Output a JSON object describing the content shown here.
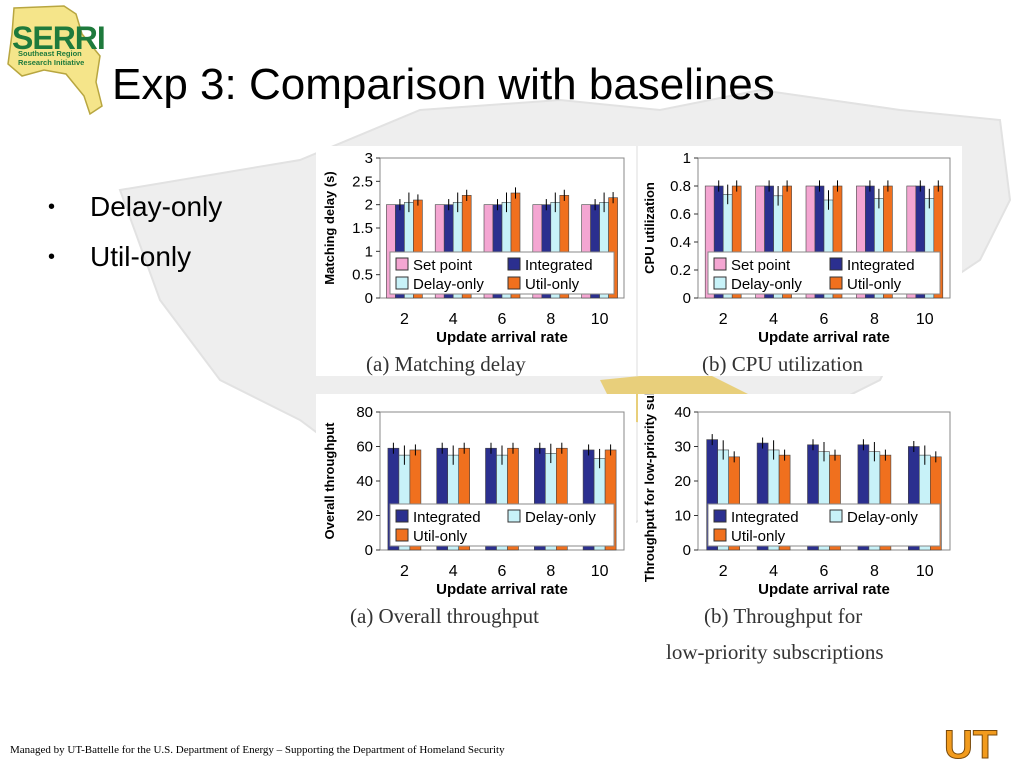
{
  "slide": {
    "title": "Exp 3: Comparison with baselines",
    "bullets": [
      "Delay-only",
      "Util-only"
    ],
    "footer": "Managed by UT-Battelle for the U.S. Department of Energy – Supporting the Department of Homeland Security",
    "logo_text": "SERRI",
    "logo_subtitle": "Southeast Region Research Initiative",
    "ut_logo_text": "UT",
    "captions": {
      "top_left": "(a) Matching delay",
      "top_right": "(b) CPU utilization",
      "bottom_left": "(a) Overall throughput",
      "bottom_right_1": "(b) Throughput for",
      "bottom_right_2": "low-priority subscriptions"
    }
  },
  "colors": {
    "set_point": "#f4a6d2",
    "integrated": "#2b2f8f",
    "delay_only": "#c8f2f8",
    "util_only": "#f0701e"
  },
  "chart_data": [
    {
      "type": "bar",
      "ylabel": "Matching delay (s)",
      "xlabel": "Update arrival rate",
      "categories": [
        "2",
        "4",
        "6",
        "8",
        "10"
      ],
      "ylim": [
        0,
        3
      ],
      "yticks": [
        "0",
        "0.5",
        "1",
        "1.5",
        "2",
        "2.5",
        "3"
      ],
      "legend": "bottom",
      "grid": false,
      "series": [
        {
          "name": "Set point",
          "color": "#f4a6d2",
          "values": [
            2.0,
            2.0,
            2.0,
            2.0,
            2.0
          ]
        },
        {
          "name": "Integrated",
          "color": "#2b2f8f",
          "values": [
            2.0,
            2.0,
            2.0,
            2.0,
            2.0
          ]
        },
        {
          "name": "Delay-only",
          "color": "#c8f2f8",
          "values": [
            2.05,
            2.05,
            2.05,
            2.05,
            2.05
          ]
        },
        {
          "name": "Util-only",
          "color": "#f0701e",
          "values": [
            2.1,
            2.2,
            2.25,
            2.2,
            2.15
          ]
        }
      ]
    },
    {
      "type": "bar",
      "ylabel": "CPU utilization",
      "xlabel": "Update arrival rate",
      "categories": [
        "2",
        "4",
        "6",
        "8",
        "10"
      ],
      "ylim": [
        0,
        1
      ],
      "yticks": [
        "0",
        "0.2",
        "0.4",
        "0.6",
        "0.8",
        "1"
      ],
      "legend": "bottom",
      "grid": false,
      "series": [
        {
          "name": "Set point",
          "color": "#f4a6d2",
          "values": [
            0.8,
            0.8,
            0.8,
            0.8,
            0.8
          ]
        },
        {
          "name": "Integrated",
          "color": "#2b2f8f",
          "values": [
            0.8,
            0.8,
            0.8,
            0.8,
            0.8
          ]
        },
        {
          "name": "Delay-only",
          "color": "#c8f2f8",
          "values": [
            0.74,
            0.73,
            0.7,
            0.71,
            0.71
          ]
        },
        {
          "name": "Util-only",
          "color": "#f0701e",
          "values": [
            0.8,
            0.8,
            0.8,
            0.8,
            0.8
          ]
        }
      ]
    },
    {
      "type": "bar",
      "ylabel": "Overall throughput",
      "xlabel": "Update arrival rate",
      "categories": [
        "2",
        "4",
        "6",
        "8",
        "10"
      ],
      "ylim": [
        0,
        80
      ],
      "yticks": [
        "0",
        "20",
        "40",
        "60",
        "80"
      ],
      "legend": "bottom",
      "grid": false,
      "series": [
        {
          "name": "Integrated",
          "color": "#2b2f8f",
          "values": [
            59,
            59,
            59,
            59,
            58
          ]
        },
        {
          "name": "Delay-only",
          "color": "#c8f2f8",
          "values": [
            55,
            55,
            55,
            56,
            53
          ]
        },
        {
          "name": "Util-only",
          "color": "#f0701e",
          "values": [
            58,
            59,
            59,
            59,
            58
          ]
        }
      ]
    },
    {
      "type": "bar",
      "ylabel": "Throughput for low-priority subs",
      "xlabel": "Update arrival rate",
      "categories": [
        "2",
        "4",
        "6",
        "8",
        "10"
      ],
      "ylim": [
        0,
        40
      ],
      "yticks": [
        "0",
        "10",
        "20",
        "30",
        "40"
      ],
      "legend": "bottom",
      "grid": false,
      "series": [
        {
          "name": "Integrated",
          "color": "#2b2f8f",
          "values": [
            32,
            31,
            30.5,
            30.5,
            30
          ]
        },
        {
          "name": "Delay-only",
          "color": "#c8f2f8",
          "values": [
            29,
            29,
            28.5,
            28.5,
            27.5
          ]
        },
        {
          "name": "Util-only",
          "color": "#f0701e",
          "values": [
            27,
            27.5,
            27.5,
            27.5,
            27
          ]
        }
      ]
    }
  ]
}
